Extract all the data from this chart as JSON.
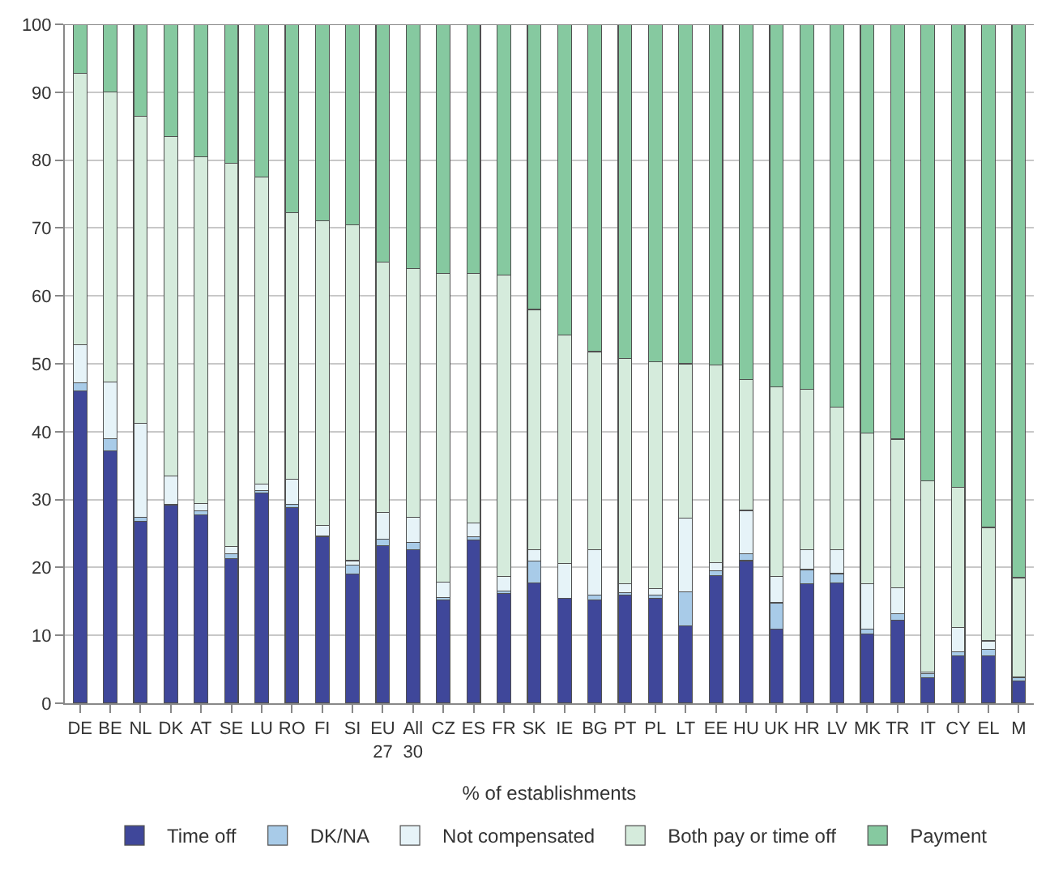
{
  "chart_data": {
    "type": "bar",
    "stacked": true,
    "xlabel": "% of establishments",
    "categories": [
      "DE",
      "BE",
      "NL",
      "DK",
      "AT",
      "SE",
      "LU",
      "RO",
      "FI",
      "SI",
      "EU 27",
      "All 30",
      "CZ",
      "ES",
      "FR",
      "SK",
      "IE",
      "BG",
      "PT",
      "PL",
      "LT",
      "EE",
      "HU",
      "UK",
      "HR",
      "LV",
      "MK",
      "TR",
      "IT",
      "CY",
      "EL",
      "M"
    ],
    "series": [
      {
        "name": "Time off",
        "color": "#3f479a",
        "values": [
          46,
          37.2,
          26.8,
          29.2,
          27.7,
          21.3,
          31,
          28.8,
          24.5,
          19,
          23.2,
          22.6,
          15.2,
          24,
          16.2,
          17.7,
          15.5,
          15.2,
          15.9,
          15.5,
          11.4,
          18.8,
          21,
          10.9,
          17.6,
          17.7,
          10.2,
          12.2,
          3.8,
          7,
          7,
          3.3
        ]
      },
      {
        "name": "DK/NA",
        "color": "#a8cbe8",
        "values": [
          1.2,
          1.8,
          0.6,
          0.1,
          0.6,
          0.7,
          0.3,
          0.5,
          0.1,
          1.3,
          1,
          1.1,
          0.4,
          0.5,
          0.3,
          3.2,
          0,
          0.7,
          0.4,
          0.4,
          5,
          0.7,
          1,
          3.9,
          2.1,
          1.4,
          0.7,
          1,
          0.6,
          0.6,
          0.9,
          0.5
        ]
      },
      {
        "name": "Not compensated",
        "color": "#e6f3f8",
        "values": [
          5.6,
          8.3,
          13.8,
          4.2,
          1.1,
          1.1,
          1,
          3.7,
          1.6,
          0.7,
          3.9,
          3.7,
          2.2,
          2.1,
          2.2,
          1.7,
          5.1,
          6.7,
          1.3,
          1,
          10.9,
          1.2,
          6.4,
          3.9,
          2.9,
          3.5,
          6.7,
          3.8,
          0.2,
          3.6,
          1.3,
          0.1
        ]
      },
      {
        "name": "Both pay or time off",
        "color": "#d5ebdc",
        "values": [
          40,
          42.7,
          45.3,
          50,
          51.1,
          56.4,
          45.2,
          39.3,
          44.9,
          49.5,
          36.9,
          36.6,
          45.5,
          36.7,
          44.4,
          35.4,
          33.6,
          29.2,
          33.2,
          33.4,
          22.7,
          29.1,
          19.3,
          27.9,
          23.6,
          21,
          22.2,
          21.9,
          28.2,
          20.6,
          16.7,
          14.6
        ]
      },
      {
        "name": "Payment",
        "color": "#86c9a0",
        "values": [
          7.2,
          10,
          13.5,
          16.5,
          19.5,
          20.5,
          22.5,
          27.7,
          28.9,
          29.5,
          35,
          36,
          36.7,
          36.7,
          36.9,
          42,
          45.8,
          48.2,
          49.2,
          49.7,
          50,
          50.2,
          52.3,
          53.4,
          53.8,
          56.4,
          60.2,
          61.1,
          67.2,
          68.2,
          74.1,
          81.5
        ]
      }
    ],
    "ylim": [
      0,
      100
    ],
    "yticks": [
      0,
      10,
      20,
      30,
      40,
      50,
      60,
      70,
      80,
      90,
      100
    ],
    "grid": "y",
    "legend": "bottom"
  }
}
